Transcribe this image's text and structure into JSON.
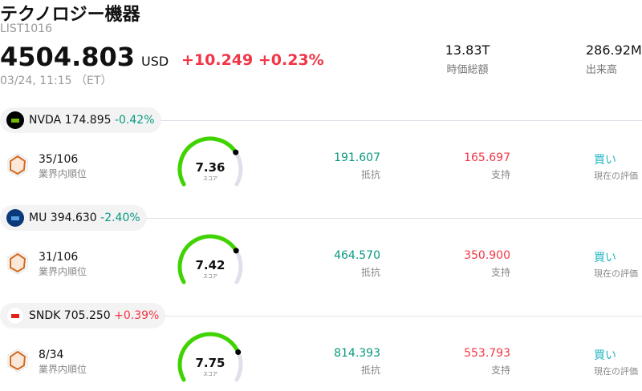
{
  "header": {
    "title": "テクノロジー機器",
    "code": "LIST1016",
    "price": "4504.803",
    "currency": "USD",
    "change": "+10.249",
    "change_pct": "+0.23%",
    "time": "03/24, 11:15 （ET）"
  },
  "stats": [
    {
      "value": "13.83T",
      "label": "時価総額"
    },
    {
      "value": "286.92M",
      "label": "出来高"
    }
  ],
  "colors": {
    "up": "#f23645",
    "down": "#089981",
    "gauge": "#3fd400",
    "buy": "#22b5c2"
  },
  "stocks": [
    {
      "ticker": "NVDA",
      "price": "174.895",
      "change": "-0.42%",
      "dir": "down",
      "rank": "35/106",
      "rank_label": "業界内順位",
      "score": "7.36",
      "score_value": 7.36,
      "score_label": "スコア",
      "resistance": "191.607",
      "resistance_label": "抵抗",
      "support": "165.697",
      "support_label": "支持",
      "rating": "買い",
      "rating_label": "現在の評価",
      "logo_color": "#000000",
      "logo_icon": "nvidia-logo"
    },
    {
      "ticker": "MU",
      "price": "394.630",
      "change": "-2.40%",
      "dir": "down",
      "rank": "31/106",
      "rank_label": "業界内順位",
      "score": "7.42",
      "score_value": 7.42,
      "score_label": "スコア",
      "resistance": "464.570",
      "resistance_label": "抵抗",
      "support": "350.900",
      "support_label": "支持",
      "rating": "買い",
      "rating_label": "現在の評価",
      "logo_color": "#0b3a7a",
      "logo_icon": "micron-logo"
    },
    {
      "ticker": "SNDK",
      "price": "705.250",
      "change": "+0.39%",
      "dir": "up",
      "rank": "8/34",
      "rank_label": "業界内順位",
      "score": "7.75",
      "score_value": 7.75,
      "score_label": "スコア",
      "resistance": "814.393",
      "resistance_label": "抵抗",
      "support": "553.793",
      "support_label": "支持",
      "rating": "買い",
      "rating_label": "現在の評価",
      "logo_color": "#ffffff",
      "logo_icon": "sandisk-logo"
    }
  ]
}
